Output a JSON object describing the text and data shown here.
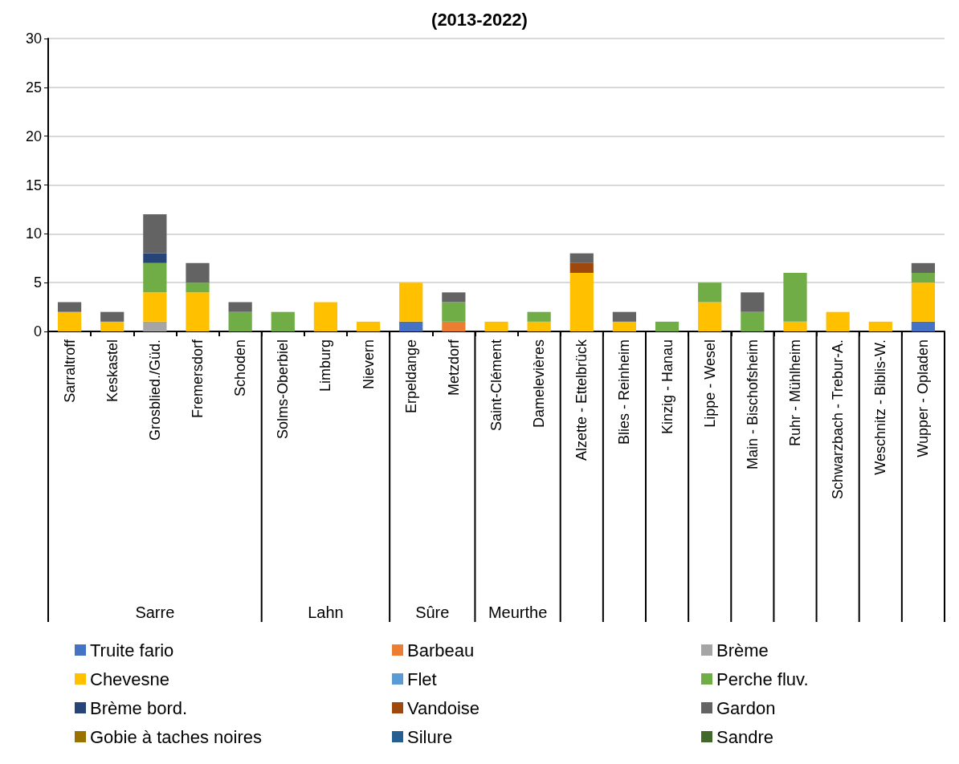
{
  "chart_data": {
    "type": "bar",
    "stacked": true,
    "title": "(2013-2022)",
    "categories": [
      "Sarraltroff",
      "Keskastel",
      "Grosblied./Güd.",
      "Fremersdorf",
      "Schoden",
      "Solms-Oberbiel",
      "Limburg",
      "Nievern",
      "Erpeldange",
      "Metzdorf",
      "Saint-Clément",
      "Damelevières",
      "Alzette - Ettelbrück",
      "Blies - Reinheim",
      "Kinzig - Hanau",
      "Lippe - Wesel",
      "Main - Bischofsheim",
      "Ruhr - Mühlheim",
      "Schwarzbach - Trebur-A.",
      "Weschnitz - Biblis-W.",
      "Wupper - Opladen"
    ],
    "series": [
      {
        "name": "Truite fario",
        "color": "#4472c4",
        "values": [
          0,
          0,
          0,
          0,
          0,
          0,
          0,
          0,
          1,
          0,
          0,
          0,
          0,
          0,
          0,
          0,
          0,
          0,
          0,
          0,
          1
        ]
      },
      {
        "name": "Barbeau",
        "color": "#ed7d31",
        "values": [
          0,
          0,
          0,
          0,
          0,
          0,
          0,
          0,
          0,
          1,
          0,
          0,
          0,
          0,
          0,
          0,
          0,
          0,
          0,
          0,
          0
        ]
      },
      {
        "name": "Brème",
        "color": "#a5a5a5",
        "values": [
          0,
          0,
          1,
          0,
          0,
          0,
          0,
          0,
          0,
          0,
          0,
          0,
          0,
          0,
          0,
          0,
          0,
          0,
          0,
          0,
          0
        ]
      },
      {
        "name": "Chevesne",
        "color": "#ffc000",
        "values": [
          2,
          1,
          3,
          4,
          0,
          0,
          3,
          1,
          4,
          0,
          1,
          1,
          6,
          1,
          0,
          3,
          0,
          1,
          2,
          1,
          4
        ]
      },
      {
        "name": "Flet",
        "color": "#5b9bd5",
        "values": [
          0,
          0,
          0,
          0,
          0,
          0,
          0,
          0,
          0,
          0,
          0,
          0,
          0,
          0,
          0,
          0,
          0,
          0,
          0,
          0,
          0
        ]
      },
      {
        "name": "Perche fluv.",
        "color": "#70ad47",
        "values": [
          0,
          0,
          3,
          1,
          2,
          2,
          0,
          0,
          0,
          2,
          0,
          1,
          0,
          0,
          1,
          2,
          2,
          5,
          0,
          0,
          1
        ]
      },
      {
        "name": "Brème bord.",
        "color": "#264478",
        "values": [
          0,
          0,
          1,
          0,
          0,
          0,
          0,
          0,
          0,
          0,
          0,
          0,
          0,
          0,
          0,
          0,
          0,
          0,
          0,
          0,
          0
        ]
      },
      {
        "name": "Vandoise",
        "color": "#9e480e",
        "values": [
          0,
          0,
          0,
          0,
          0,
          0,
          0,
          0,
          0,
          0,
          0,
          0,
          1,
          0,
          0,
          0,
          0,
          0,
          0,
          0,
          0
        ]
      },
      {
        "name": "Gardon",
        "color": "#636363",
        "values": [
          1,
          1,
          4,
          2,
          1,
          0,
          0,
          0,
          0,
          1,
          0,
          0,
          1,
          1,
          0,
          0,
          2,
          0,
          0,
          0,
          1
        ]
      },
      {
        "name": "Gobie à taches noires",
        "color": "#997300",
        "values": [
          0,
          0,
          0,
          0,
          0,
          0,
          0,
          0,
          0,
          0,
          0,
          0,
          0,
          0,
          0,
          0,
          0,
          0,
          0,
          0,
          0
        ]
      },
      {
        "name": "Silure",
        "color": "#255e91",
        "values": [
          0,
          0,
          0,
          0,
          0,
          0,
          0,
          0,
          0,
          0,
          0,
          0,
          0,
          0,
          0,
          0,
          0,
          0,
          0,
          0,
          0
        ]
      },
      {
        "name": "Sandre",
        "color": "#43682b",
        "values": [
          0,
          0,
          0,
          0,
          0,
          0,
          0,
          0,
          0,
          0,
          0,
          0,
          0,
          0,
          0,
          0,
          0,
          0,
          0,
          0,
          0
        ]
      }
    ],
    "ylim": [
      0,
      30
    ],
    "yticks": [
      0,
      5,
      10,
      15,
      20,
      25,
      30
    ],
    "grid": "y",
    "legend": "bottom",
    "annotations": [
      "Sarre",
      "Lahn",
      "Sûre",
      "Meurthe"
    ]
  }
}
